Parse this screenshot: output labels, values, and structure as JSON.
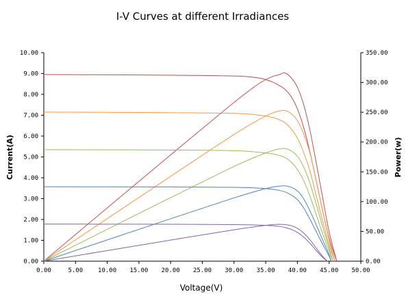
{
  "chart_data": {
    "type": "line",
    "title": "I-V Curves at different Irradiances",
    "xlabel": "Voltage(V)",
    "ylabel": "Current(A)",
    "y2label": "Power(w)",
    "xlim": [
      0,
      50
    ],
    "ylim": [
      0,
      10
    ],
    "y2lim": [
      0,
      350
    ],
    "x_ticks": [
      "0.00",
      "5.00",
      "10.00",
      "15.00",
      "20.00",
      "25.00",
      "30.00",
      "35.00",
      "40.00",
      "45.00",
      "50.00"
    ],
    "y_ticks": [
      "0.00",
      "1.00",
      "2.00",
      "3.00",
      "4.00",
      "5.00",
      "6.00",
      "7.00",
      "8.00",
      "9.00",
      "10.00"
    ],
    "y2_ticks": [
      "0.00",
      "50.00",
      "100.00",
      "150.00",
      "200.00",
      "250.00",
      "300.00",
      "350.00"
    ],
    "grid": false,
    "legend": "none",
    "series": [
      {
        "color": "#c0504d",
        "isc": 8.95,
        "voc": 46.2,
        "vmp": 38.0,
        "pmax": 316,
        "iv": [
          [
            0,
            8.95
          ],
          [
            10,
            8.94
          ],
          [
            20,
            8.92
          ],
          [
            30,
            8.88
          ],
          [
            34,
            8.78
          ],
          [
            36,
            8.6
          ],
          [
            37,
            8.45
          ],
          [
            38,
            8.25
          ],
          [
            39,
            7.9
          ],
          [
            40,
            7.3
          ],
          [
            41,
            6.4
          ],
          [
            42,
            5.2
          ],
          [
            43,
            3.8
          ],
          [
            44,
            2.4
          ],
          [
            45,
            1.1
          ],
          [
            46.2,
            0
          ]
        ],
        "pv": [
          [
            0,
            0
          ],
          [
            10,
            89.4
          ],
          [
            20,
            178.4
          ],
          [
            30,
            266.4
          ],
          [
            34,
            298.5
          ],
          [
            36,
            309.6
          ],
          [
            37,
            312.6
          ],
          [
            38,
            316
          ],
          [
            39,
            308.1
          ],
          [
            40,
            292
          ],
          [
            41,
            262.4
          ],
          [
            42,
            218.4
          ],
          [
            43,
            163.4
          ],
          [
            44,
            105.6
          ],
          [
            45,
            49.5
          ],
          [
            46.2,
            0
          ]
        ]
      },
      {
        "color": "#f79646",
        "isc": 7.15,
        "voc": 45.9,
        "vmp": 38.0,
        "pmax": 253,
        "iv": [
          [
            0,
            7.15
          ],
          [
            10,
            7.14
          ],
          [
            20,
            7.12
          ],
          [
            30,
            7.09
          ],
          [
            34,
            7.0
          ],
          [
            36,
            6.9
          ],
          [
            37,
            6.8
          ],
          [
            38,
            6.65
          ],
          [
            39,
            6.35
          ],
          [
            40,
            5.9
          ],
          [
            41,
            5.2
          ],
          [
            42,
            4.3
          ],
          [
            43,
            3.1
          ],
          [
            44,
            1.9
          ],
          [
            45,
            0.8
          ],
          [
            45.9,
            0
          ]
        ],
        "pv": [
          [
            0,
            0
          ],
          [
            10,
            71.4
          ],
          [
            20,
            142.4
          ],
          [
            30,
            212.7
          ],
          [
            34,
            238
          ],
          [
            36,
            248.4
          ],
          [
            37,
            251.6
          ],
          [
            38,
            253
          ],
          [
            39,
            247.7
          ],
          [
            40,
            236
          ],
          [
            41,
            213.2
          ],
          [
            42,
            180.6
          ],
          [
            43,
            133.3
          ],
          [
            44,
            83.6
          ],
          [
            45,
            36
          ],
          [
            45.9,
            0
          ]
        ]
      },
      {
        "color": "#9bbb59",
        "isc": 5.35,
        "voc": 45.6,
        "vmp": 38.0,
        "pmax": 189,
        "iv": [
          [
            0,
            5.35
          ],
          [
            10,
            5.34
          ],
          [
            20,
            5.33
          ],
          [
            30,
            5.3
          ],
          [
            34,
            5.22
          ],
          [
            36,
            5.15
          ],
          [
            37,
            5.08
          ],
          [
            38,
            4.98
          ],
          [
            39,
            4.75
          ],
          [
            40,
            4.4
          ],
          [
            41,
            3.85
          ],
          [
            42,
            3.1
          ],
          [
            43,
            2.2
          ],
          [
            44,
            1.3
          ],
          [
            45,
            0.5
          ],
          [
            45.6,
            0
          ]
        ],
        "pv": [
          [
            0,
            0
          ],
          [
            10,
            53.4
          ],
          [
            20,
            106.6
          ],
          [
            30,
            159
          ],
          [
            34,
            177.5
          ],
          [
            36,
            185.4
          ],
          [
            37,
            188
          ],
          [
            38,
            189.2
          ],
          [
            39,
            185.3
          ],
          [
            40,
            176
          ],
          [
            41,
            157.9
          ],
          [
            42,
            130.2
          ],
          [
            43,
            94.6
          ],
          [
            44,
            57.2
          ],
          [
            45,
            22.5
          ],
          [
            45.6,
            0
          ]
        ]
      },
      {
        "color": "#4f81bd",
        "isc": 3.57,
        "voc": 45.3,
        "vmp": 38.0,
        "pmax": 127,
        "iv": [
          [
            0,
            3.57
          ],
          [
            10,
            3.565
          ],
          [
            20,
            3.56
          ],
          [
            30,
            3.54
          ],
          [
            34,
            3.5
          ],
          [
            36,
            3.45
          ],
          [
            37,
            3.4
          ],
          [
            38,
            3.33
          ],
          [
            39,
            3.18
          ],
          [
            40,
            2.95
          ],
          [
            41,
            2.55
          ],
          [
            42,
            2.0
          ],
          [
            43,
            1.4
          ],
          [
            44,
            0.8
          ],
          [
            45,
            0.25
          ],
          [
            45.3,
            0
          ]
        ],
        "pv": [
          [
            0,
            0
          ],
          [
            10,
            35.7
          ],
          [
            20,
            71.2
          ],
          [
            30,
            106.2
          ],
          [
            34,
            119
          ],
          [
            36,
            124.2
          ],
          [
            37,
            125.8
          ],
          [
            38,
            126.5
          ],
          [
            39,
            124
          ],
          [
            40,
            118
          ],
          [
            41,
            104.6
          ],
          [
            42,
            84
          ],
          [
            43,
            60.2
          ],
          [
            44,
            35.2
          ],
          [
            45,
            11.3
          ],
          [
            45.3,
            0
          ]
        ]
      },
      {
        "color": "#8064a2",
        "isc": 1.78,
        "voc": 44.7,
        "vmp": 37.0,
        "pmax": 61,
        "iv": [
          [
            0,
            1.78
          ],
          [
            10,
            1.775
          ],
          [
            20,
            1.77
          ],
          [
            30,
            1.755
          ],
          [
            34,
            1.73
          ],
          [
            36,
            1.7
          ],
          [
            37,
            1.67
          ],
          [
            38,
            1.62
          ],
          [
            39,
            1.53
          ],
          [
            40,
            1.38
          ],
          [
            41,
            1.15
          ],
          [
            42,
            0.85
          ],
          [
            43,
            0.5
          ],
          [
            44,
            0.18
          ],
          [
            44.7,
            0
          ]
        ],
        "pv": [
          [
            0,
            0
          ],
          [
            10,
            17.8
          ],
          [
            20,
            35.4
          ],
          [
            30,
            52.7
          ],
          [
            34,
            58.8
          ],
          [
            36,
            61.2
          ],
          [
            37,
            61.8
          ],
          [
            38,
            61.6
          ],
          [
            39,
            59.7
          ],
          [
            40,
            55.2
          ],
          [
            41,
            47.2
          ],
          [
            42,
            35.7
          ],
          [
            43,
            21.5
          ],
          [
            44,
            7.9
          ],
          [
            44.7,
            0
          ]
        ]
      }
    ]
  }
}
